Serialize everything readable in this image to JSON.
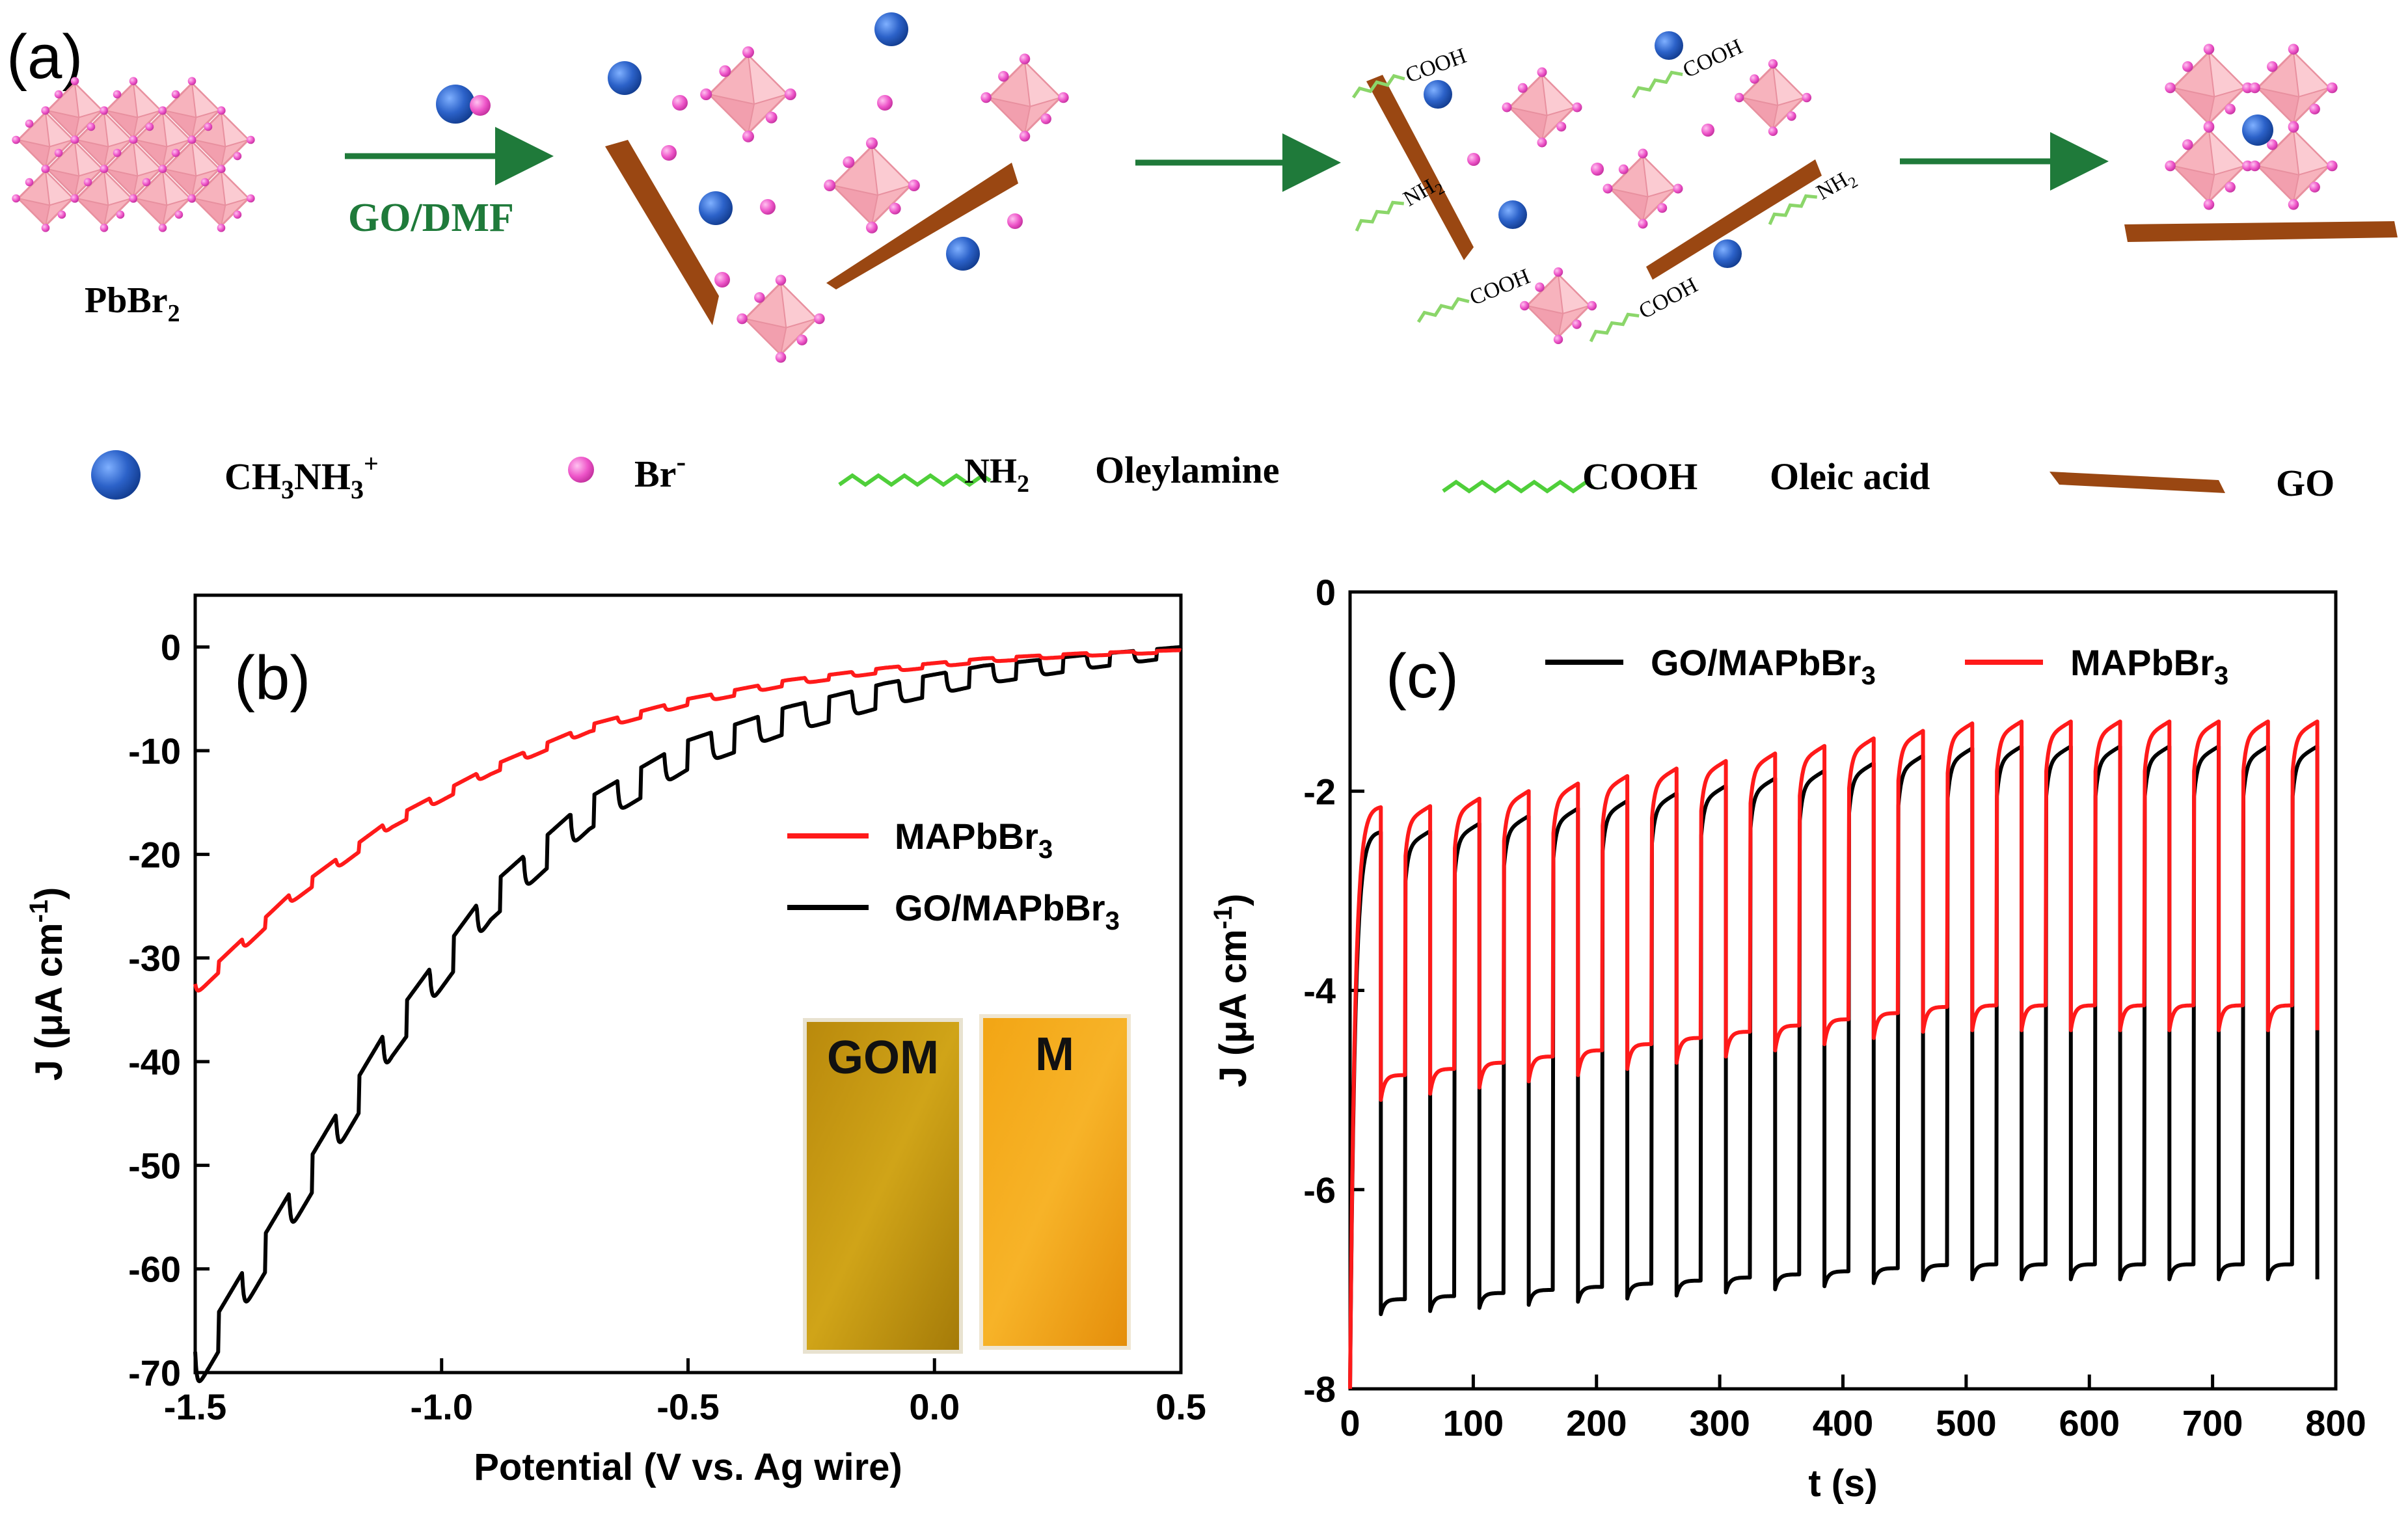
{
  "panel_a": {
    "label": "(a)",
    "pbbr2": "PbBr",
    "pbbr2_sub": "2",
    "arrow_label": "GO/DMF",
    "cooh": "COOH",
    "nh2": "NH",
    "nh2_sub": "2",
    "legend": {
      "ch3nh3": "CH",
      "ch3nh3_sub1": "3",
      "ch3nh3_mid": "NH",
      "ch3nh3_sub2": "3",
      "ch3nh3_sup": "+",
      "br": "Br",
      "br_sup": "-",
      "nh2": "NH",
      "nh2_sub": "2",
      "oleylamine": "Oleylamine",
      "cooh": "COOH",
      "oleic_acid": "Oleic acid",
      "go": "GO"
    },
    "colors": {
      "octahedron": "#f7b3bd",
      "octahedron_edge": "#e8909f",
      "br_ion": "#ee55c9",
      "cation": "#2c62c9",
      "go_sheet": "#9a4712",
      "arrow": "#1f7a3a",
      "ligand": "#8bd66a"
    }
  },
  "chart_data": [
    {
      "panel": "(b)",
      "type": "line",
      "xlabel": "Potential (V vs. Ag wire)",
      "ylabel": "J (μA cm",
      "ylabel_sup": "-1",
      "ylabel_end": ")",
      "xlim": [
        -1.5,
        0.5
      ],
      "ylim": [
        -70,
        5
      ],
      "xticks": [
        "-1.5",
        "-1.0",
        "-0.5",
        "0.0",
        "0.5"
      ],
      "xtick_values": [
        -1.5,
        -1.0,
        -0.5,
        0.0,
        0.5
      ],
      "yticks": [
        "0",
        "-10",
        "-20",
        "-30",
        "-40",
        "-50",
        "-60",
        "-70"
      ],
      "ytick_values": [
        0,
        -10,
        -20,
        -30,
        -40,
        -50,
        -60,
        -70
      ],
      "series": [
        {
          "name": "MAPbBr",
          "sub": "3",
          "color": "#ff1a1a",
          "x": [
            -1.5,
            -1.3,
            -1.1,
            -0.9,
            -0.7,
            -0.5,
            -0.3,
            -0.1,
            0.1,
            0.3,
            0.5
          ],
          "values": [
            -32.5,
            -23.5,
            -16.5,
            -11.5,
            -7.5,
            -5.0,
            -3.2,
            -2.0,
            -1.1,
            -0.6,
            -0.3
          ],
          "chopped": true,
          "step_amplitude": [
            1.2,
            0.8,
            0.5,
            0.2
          ]
        },
        {
          "name": "GO/MAPbBr",
          "sub": "3",
          "color": "#000000",
          "x": [
            -1.5,
            -1.3,
            -1.1,
            -0.9,
            -0.7,
            -0.5,
            -0.3,
            -0.1,
            0.1,
            0.3,
            0.5
          ],
          "values": [
            -68.0,
            -52.0,
            -36.0,
            -23.0,
            -14.5,
            -9.0,
            -5.8,
            -3.5,
            -1.8,
            -0.8,
            0.0
          ],
          "chopped": true,
          "step_amplitude": [
            4.2,
            3.6,
            2.6,
            1.0
          ]
        }
      ],
      "legend": "center-right",
      "label": "(b)",
      "inset": {
        "left_label": "GOM",
        "right_label": "M",
        "left_color": "#c89a10",
        "right_color": "#ef9d12"
      }
    },
    {
      "panel": "(c)",
      "type": "line",
      "xlabel": "t (s)",
      "ylabel": "J (μA cm",
      "ylabel_sup": "-1",
      "ylabel_end": ")",
      "xlim": [
        0,
        800
      ],
      "ylim": [
        -8,
        0
      ],
      "xticks": [
        "0",
        "100",
        "200",
        "300",
        "400",
        "500",
        "600",
        "700",
        "800"
      ],
      "xtick_values": [
        0,
        100,
        200,
        300,
        400,
        500,
        600,
        700,
        800
      ],
      "yticks": [
        "0",
        "-2",
        "-4",
        "-6",
        "-8"
      ],
      "ytick_values": [
        0,
        -2,
        -4,
        -6,
        -8
      ],
      "period_s": 40,
      "cycles": 19,
      "start_s": 25,
      "end_s": 775,
      "series": [
        {
          "name": "GO/MAPbBr",
          "sub": "3",
          "color": "#000000",
          "off_start": -7.25,
          "off_end": -6.9,
          "on_start": -2.4,
          "on_end": -1.55
        },
        {
          "name": "MAPbBr",
          "sub": "3",
          "color": "#ff1a1a",
          "off_start": -5.1,
          "off_end": -4.4,
          "on_start": -2.15,
          "on_end": -1.3
        }
      ],
      "legend": "top",
      "label": "(c)"
    }
  ]
}
